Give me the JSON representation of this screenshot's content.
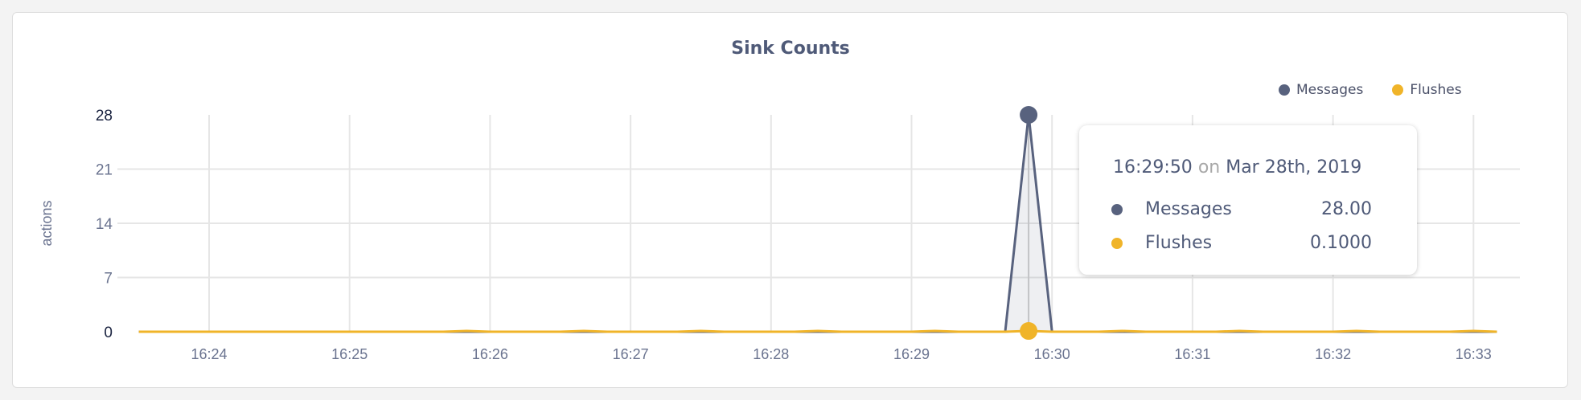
{
  "chart_data": {
    "type": "line",
    "title": "Sink Counts",
    "ylabel": "actions",
    "xlabel": "",
    "ylim": [
      0,
      28
    ],
    "yticks": [
      "0",
      "7",
      "14",
      "21",
      "28"
    ],
    "xticks": [
      "16:24",
      "16:25",
      "16:26",
      "16:27",
      "16:28",
      "16:29",
      "16:30",
      "16:31",
      "16:32",
      "16:33"
    ],
    "grid": true,
    "legend_position": "top-right",
    "x": [
      "16:23:30",
      "16:23:40",
      "16:23:50",
      "16:24:00",
      "16:24:10",
      "16:24:20",
      "16:24:30",
      "16:24:40",
      "16:24:50",
      "16:25:00",
      "16:25:10",
      "16:25:20",
      "16:25:30",
      "16:25:40",
      "16:25:50",
      "16:26:00",
      "16:26:10",
      "16:26:20",
      "16:26:30",
      "16:26:40",
      "16:26:50",
      "16:27:00",
      "16:27:10",
      "16:27:20",
      "16:27:30",
      "16:27:40",
      "16:27:50",
      "16:28:00",
      "16:28:10",
      "16:28:20",
      "16:28:30",
      "16:28:40",
      "16:28:50",
      "16:29:00",
      "16:29:10",
      "16:29:20",
      "16:29:30",
      "16:29:40",
      "16:29:50",
      "16:30:00",
      "16:30:10",
      "16:30:20",
      "16:30:30",
      "16:30:40",
      "16:30:50",
      "16:31:00",
      "16:31:10",
      "16:31:20",
      "16:31:30",
      "16:31:40",
      "16:31:50",
      "16:32:00",
      "16:32:10",
      "16:32:20",
      "16:32:30",
      "16:32:40",
      "16:32:50",
      "16:33:00",
      "16:33:10"
    ],
    "series": [
      {
        "name": "Messages",
        "color": "#58627e",
        "values": [
          0,
          0,
          0,
          0,
          0,
          0,
          0,
          0,
          0,
          0,
          0,
          0,
          0,
          0,
          0,
          0,
          0,
          0,
          0,
          0,
          0,
          0,
          0,
          0,
          0,
          0,
          0,
          0,
          0,
          0,
          0,
          0,
          0,
          0,
          0,
          0,
          0,
          0,
          28,
          0,
          0,
          0,
          0,
          0,
          0,
          0,
          0,
          0,
          0,
          0,
          0,
          0,
          0,
          0,
          0,
          0,
          0,
          0,
          0
        ]
      },
      {
        "name": "Flushes",
        "color": "#f0b429",
        "values": [
          0,
          0,
          0,
          0,
          0,
          0,
          0,
          0,
          0,
          0,
          0,
          0,
          0,
          0,
          0.1,
          0,
          0,
          0,
          0,
          0.1,
          0,
          0,
          0,
          0,
          0.1,
          0,
          0,
          0,
          0,
          0.1,
          0,
          0,
          0,
          0,
          0.1,
          0,
          0,
          0,
          0.1,
          0,
          0,
          0,
          0.1,
          0,
          0,
          0,
          0,
          0.1,
          0,
          0,
          0,
          0,
          0.1,
          0,
          0,
          0,
          0,
          0.1,
          0
        ]
      }
    ]
  },
  "tooltip": {
    "time": "16:29:50",
    "on": "on",
    "date": "Mar 28th, 2019",
    "rows": [
      {
        "label": "Messages",
        "value": "28.00",
        "color": "#58627e"
      },
      {
        "label": "Flushes",
        "value": "0.1000",
        "color": "#f0b429"
      }
    ]
  }
}
